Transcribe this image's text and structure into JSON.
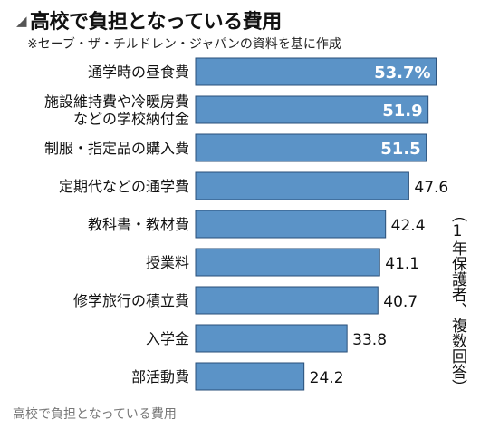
{
  "title": "高校で負担となっている費用",
  "source_note": "※セーブ・ザ・チルドレン・ジャパンの資料を基に作成",
  "side_note": "（1年保護者、複数回答）",
  "caption": "高校で負担となっている費用",
  "chart_data": {
    "type": "bar",
    "orientation": "horizontal",
    "title": "高校で負担となっている費用",
    "categories": [
      [
        "通学時の昼食費"
      ],
      [
        "施設維持費や冷暖房費",
        "などの学校納付金"
      ],
      [
        "制服・指定品の購入費"
      ],
      [
        "定期代などの通学費"
      ],
      [
        "教科書・教材費"
      ],
      [
        "授業料"
      ],
      [
        "修学旅行の積立費"
      ],
      [
        "入学金"
      ],
      [
        "部活動費"
      ]
    ],
    "values": [
      53.7,
      51.9,
      51.5,
      47.6,
      42.4,
      41.1,
      40.7,
      33.8,
      24.2
    ],
    "value_labels": [
      "53.7%",
      "51.9",
      "51.5",
      "47.6",
      "42.4",
      "41.1",
      "40.7",
      "33.8",
      "24.2"
    ],
    "unit": "%",
    "xlim": [
      0,
      55
    ],
    "grid": false,
    "bar_color": "#5b93c7",
    "bar_edge_color": "#2a4f78"
  }
}
